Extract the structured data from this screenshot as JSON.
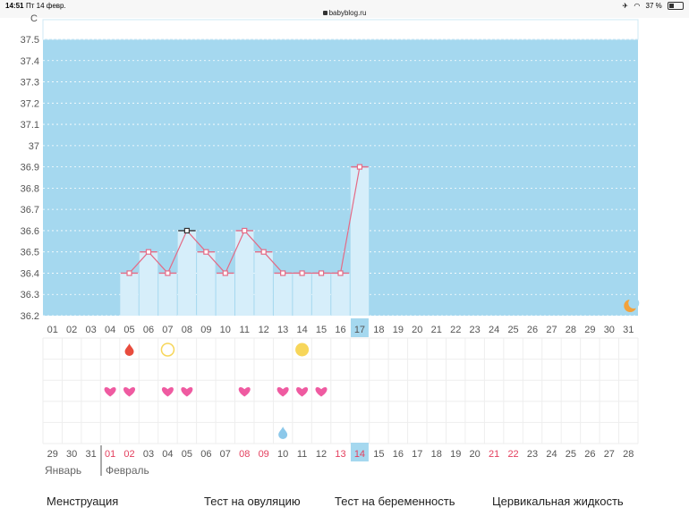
{
  "status_bar": {
    "time": "14:51",
    "date": "Пт 14 февр.",
    "url": "babyblog.ru",
    "battery": "37 %",
    "battery_level": 0.37
  },
  "chart_data": {
    "type": "line",
    "ylabel": "C",
    "ylim": [
      36.2,
      37.5
    ],
    "yticks": [
      "37.5",
      "37.4",
      "37.3",
      "37.2",
      "37.1",
      "37",
      "36.9",
      "36.8",
      "36.7",
      "36.6",
      "36.5",
      "36.4",
      "36.3",
      "36.2"
    ],
    "x_top": [
      "01",
      "02",
      "03",
      "04",
      "05",
      "06",
      "07",
      "08",
      "09",
      "10",
      "11",
      "12",
      "13",
      "14",
      "15",
      "16",
      "17",
      "18",
      "19",
      "20",
      "21",
      "22",
      "23",
      "24",
      "25",
      "26",
      "27",
      "28",
      "29",
      "30",
      "31"
    ],
    "highlight_index": 16,
    "series": [
      {
        "values": [
          null,
          null,
          null,
          null,
          36.4,
          36.5,
          36.4,
          36.6,
          36.5,
          36.4,
          36.6,
          36.5,
          36.4,
          36.4,
          36.4,
          36.4,
          36.9,
          null,
          null,
          null,
          null,
          null,
          null,
          null,
          null,
          null,
          null,
          null,
          null,
          null,
          null
        ]
      }
    ],
    "marked_index": 7,
    "x_bottom": [
      "29",
      "30",
      "31",
      "01",
      "02",
      "03",
      "04",
      "05",
      "06",
      "07",
      "08",
      "09",
      "10",
      "11",
      "12",
      "13",
      "14",
      "15",
      "16",
      "17",
      "18",
      "19",
      "20",
      "21",
      "22",
      "23",
      "24",
      "25",
      "26",
      "27",
      "28"
    ],
    "x_bottom_red": [
      3,
      4,
      10,
      11,
      15,
      16,
      23,
      24
    ],
    "months": [
      "Январь",
      "Февраль"
    ],
    "events": {
      "drop_red": [
        4
      ],
      "ovulation_empty": [
        6
      ],
      "ovulation_full": [
        13
      ],
      "heart": [
        3,
        4,
        6,
        7,
        10,
        12,
        13,
        14
      ],
      "drop_blue": [
        12
      ]
    }
  },
  "legend": {
    "items": [
      "Менструация",
      "Тест на овуляцию",
      "Тест на беременность",
      "Цервикальная жидкость"
    ]
  },
  "colors": {
    "chart_bg": "#a5d8ef",
    "bar": "#d6eefa",
    "line": "#e46b86",
    "highlight": "#a5d8ef",
    "red_text": "#e4405f",
    "heart": "#ef5ba1",
    "drop_red": "#e84c3d",
    "drop_blue": "#8cc8ea",
    "sun": "#f7d65a",
    "moon": "#f2a23b"
  }
}
